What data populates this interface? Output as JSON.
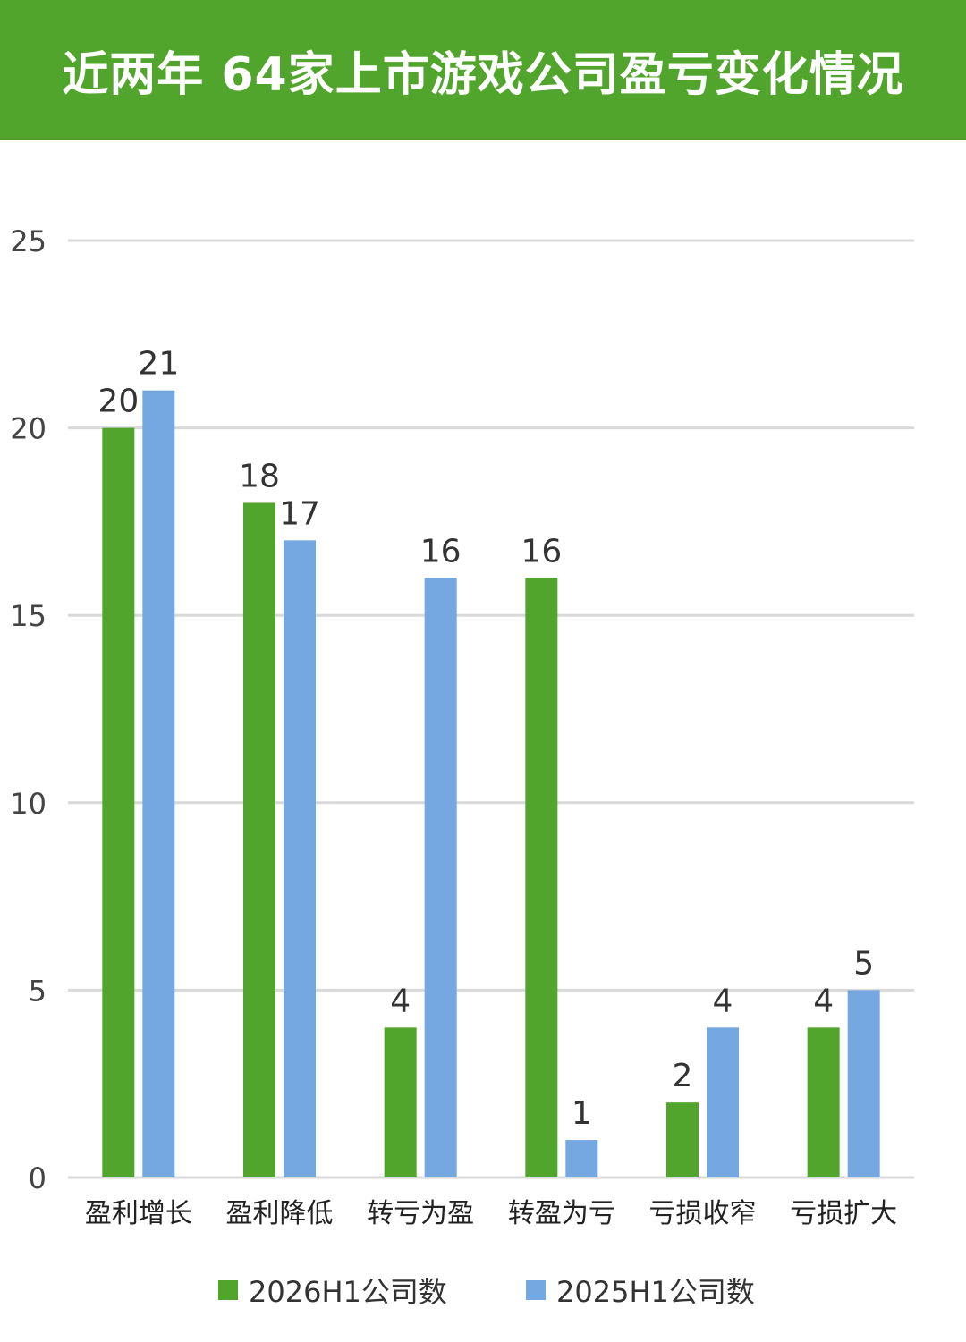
{
  "title": "近两年 64家上市游戏公司盈亏变化情况",
  "colors": {
    "header_bg": "#52a52c",
    "series_2026": "#52a52c",
    "series_2025": "#75a7e0",
    "grid": "#d9d9d9",
    "text": "#333333"
  },
  "chart_data": {
    "type": "bar",
    "categories": [
      "盈利增长",
      "盈利降低",
      "转亏为盈",
      "转盈为亏",
      "亏损收窄",
      "亏损扩大"
    ],
    "series": [
      {
        "name": "2026H1公司数",
        "values": [
          20,
          18,
          4,
          16,
          2,
          4
        ]
      },
      {
        "name": "2025H1公司数",
        "values": [
          21,
          17,
          16,
          1,
          4,
          5
        ]
      }
    ],
    "yticks": [
      0,
      5,
      10,
      15,
      20,
      25
    ],
    "ylim": [
      0,
      25
    ],
    "grid": true,
    "legend": "bottom",
    "data_labels": true
  }
}
